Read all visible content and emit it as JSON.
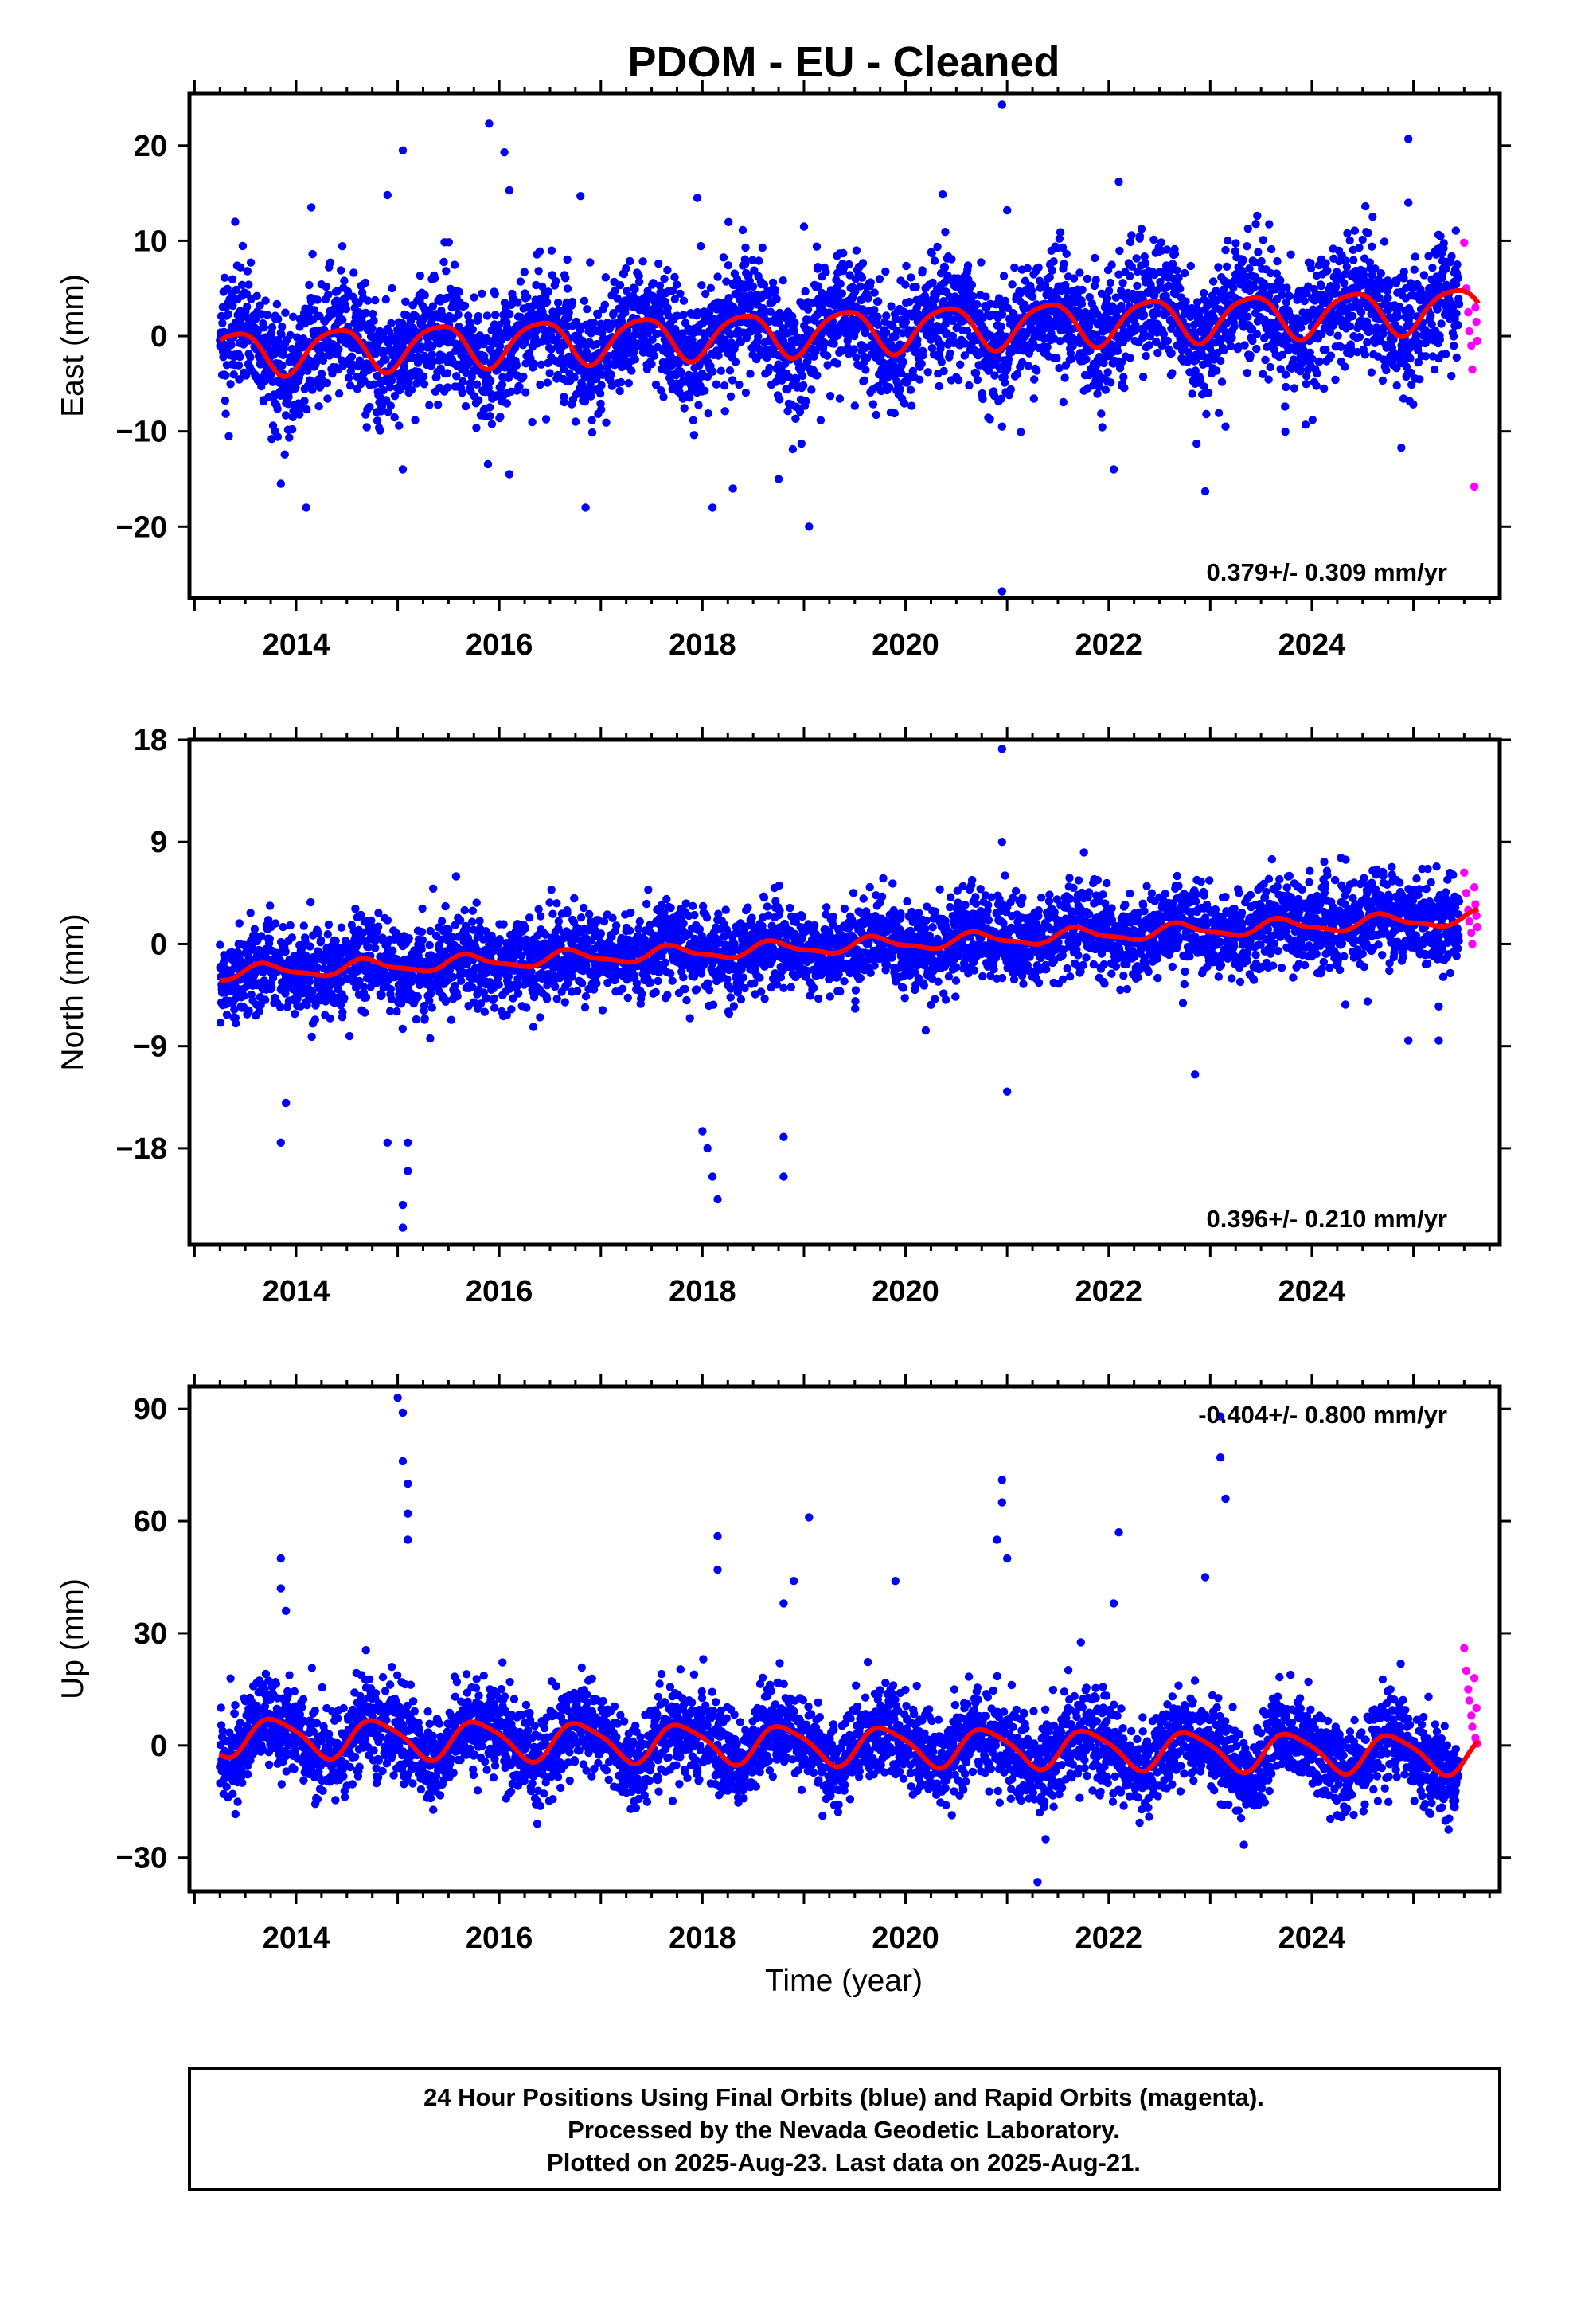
{
  "page": {
    "title": "PDOM  - EU - Cleaned",
    "footer_lines": [
      "24 Hour Positions Using Final Orbits (blue) and Rapid Orbits (magenta).",
      "Processed by the Nevada Geodetic Laboratory.",
      "Plotted on 2025-Aug-23. Last data on 2025-Aug-21."
    ],
    "xlabel": "Time (year)"
  },
  "colors": {
    "final_orbits": "#0000ff",
    "rapid_orbits": "#ff00ff",
    "model_fit": "#ff0000",
    "frame": "#000000"
  },
  "chart_data": [
    {
      "type": "scatter",
      "panel": "east",
      "ylabel": "East (mm)",
      "ylim": [
        -27.5,
        25.5
      ],
      "yticks": [
        20,
        10,
        0,
        -10,
        -20
      ],
      "xlim": [
        2012.95,
        2025.85
      ],
      "xticks": [
        2014,
        2016,
        2018,
        2020,
        2022,
        2024
      ],
      "rate_label": "0.379+/- 0.309 mm/yr",
      "rate_position": "bottom-right",
      "data_start": 2013.25,
      "final_end": 2025.45,
      "rapid_end": 2025.64,
      "model": {
        "offset": -1.8,
        "slope": 0.379,
        "t0": 2013.25,
        "annual_amp": 2.3,
        "annual_phase": 0.15,
        "semiannual_amp": 0.4
      },
      "scatter_sd": 3.2,
      "outliers": [
        {
          "x": 2013.4,
          "y": 12.0
        },
        {
          "x": 2013.85,
          "y": -15.5
        },
        {
          "x": 2014.1,
          "y": -18.0
        },
        {
          "x": 2014.15,
          "y": 13.5
        },
        {
          "x": 2014.9,
          "y": 14.8
        },
        {
          "x": 2015.05,
          "y": 19.5
        },
        {
          "x": 2015.05,
          "y": -14.0
        },
        {
          "x": 2015.9,
          "y": 22.3
        },
        {
          "x": 2016.05,
          "y": 19.3
        },
        {
          "x": 2016.1,
          "y": 15.3
        },
        {
          "x": 2016.1,
          "y": -14.5
        },
        {
          "x": 2016.8,
          "y": 14.7
        },
        {
          "x": 2016.85,
          "y": -18.0
        },
        {
          "x": 2017.95,
          "y": 14.5
        },
        {
          "x": 2018.1,
          "y": -18.0
        },
        {
          "x": 2018.3,
          "y": -16.0
        },
        {
          "x": 2018.75,
          "y": -15.0
        },
        {
          "x": 2019.0,
          "y": 11.5
        },
        {
          "x": 2019.05,
          "y": -20.0
        },
        {
          "x": 2020.95,
          "y": 24.3
        },
        {
          "x": 2020.95,
          "y": -9.5
        },
        {
          "x": 2020.95,
          "y": -26.8
        },
        {
          "x": 2021.0,
          "y": 13.2
        },
        {
          "x": 2022.05,
          "y": -14.0
        },
        {
          "x": 2022.1,
          "y": 16.2
        },
        {
          "x": 2022.95,
          "y": -16.3
        },
        {
          "x": 2023.15,
          "y": -9.5
        },
        {
          "x": 2024.95,
          "y": 20.7
        },
        {
          "x": 2024.95,
          "y": 14.0
        }
      ],
      "rapid_points": [
        {
          "x": 2025.5,
          "y": 9.8
        },
        {
          "x": 2025.52,
          "y": 5.0
        },
        {
          "x": 2025.54,
          "y": 2.5
        },
        {
          "x": 2025.55,
          "y": 0.5
        },
        {
          "x": 2025.57,
          "y": -1.0
        },
        {
          "x": 2025.58,
          "y": -3.5
        },
        {
          "x": 2025.6,
          "y": -15.8
        },
        {
          "x": 2025.61,
          "y": 3.0
        },
        {
          "x": 2025.62,
          "y": 1.5
        },
        {
          "x": 2025.63,
          "y": -0.5
        }
      ]
    },
    {
      "type": "scatter",
      "panel": "north",
      "ylabel": "North (mm)",
      "ylim": [
        -26.5,
        18.0
      ],
      "yticks": [
        18,
        9,
        0,
        -9,
        -18
      ],
      "xlim": [
        2012.95,
        2025.85
      ],
      "xticks": [
        2014,
        2016,
        2018,
        2020,
        2022,
        2024
      ],
      "rate_label": "0.396+/- 0.210 mm/yr",
      "rate_position": "bottom-right",
      "data_start": 2013.25,
      "final_end": 2025.45,
      "rapid_end": 2025.64,
      "model": {
        "offset": -2.6,
        "slope": 0.396,
        "t0": 2013.25,
        "annual_amp": 0.6,
        "annual_phase": 0.45,
        "semiannual_amp": 0.2
      },
      "scatter_sd": 1.9,
      "outliers": [
        {
          "x": 2013.85,
          "y": -17.5
        },
        {
          "x": 2013.9,
          "y": -14.0
        },
        {
          "x": 2014.9,
          "y": -17.5
        },
        {
          "x": 2015.05,
          "y": -23.0
        },
        {
          "x": 2015.05,
          "y": -25.0
        },
        {
          "x": 2015.1,
          "y": -20.0
        },
        {
          "x": 2015.1,
          "y": -17.5
        },
        {
          "x": 2018.0,
          "y": -16.5
        },
        {
          "x": 2018.05,
          "y": -18.0
        },
        {
          "x": 2018.1,
          "y": -20.5
        },
        {
          "x": 2018.15,
          "y": -22.5
        },
        {
          "x": 2018.8,
          "y": -17.0
        },
        {
          "x": 2018.8,
          "y": -20.5
        },
        {
          "x": 2020.95,
          "y": 17.2
        },
        {
          "x": 2020.95,
          "y": 9.0
        },
        {
          "x": 2021.0,
          "y": -13.0
        },
        {
          "x": 2022.85,
          "y": -11.5
        },
        {
          "x": 2024.95,
          "y": -8.5
        },
        {
          "x": 2025.25,
          "y": -8.5
        },
        {
          "x": 2025.25,
          "y": -5.5
        }
      ],
      "rapid_points": [
        {
          "x": 2025.5,
          "y": 6.3
        },
        {
          "x": 2025.52,
          "y": 4.5
        },
        {
          "x": 2025.54,
          "y": 3.0
        },
        {
          "x": 2025.55,
          "y": 2.0
        },
        {
          "x": 2025.57,
          "y": 1.0
        },
        {
          "x": 2025.58,
          "y": 0.0
        },
        {
          "x": 2025.6,
          "y": 5.0
        },
        {
          "x": 2025.61,
          "y": 3.5
        },
        {
          "x": 2025.62,
          "y": 2.5
        },
        {
          "x": 2025.63,
          "y": 1.5
        }
      ]
    },
    {
      "type": "scatter",
      "panel": "up",
      "ylabel": "Up (mm)",
      "ylim": [
        -39.0,
        96.0
      ],
      "yticks": [
        90,
        60,
        30,
        0,
        -30
      ],
      "xlim": [
        2012.95,
        2025.85
      ],
      "xticks": [
        2014,
        2016,
        2018,
        2020,
        2022,
        2024
      ],
      "rate_label": "-0.404+/- 0.800 mm/yr",
      "rate_position": "top-right",
      "data_start": 2013.25,
      "final_end": 2025.45,
      "rapid_end": 2025.64,
      "model": {
        "offset": 2.5,
        "slope": -0.404,
        "t0": 2013.25,
        "annual_amp": 5.0,
        "annual_phase": 0.55,
        "semiannual_amp": 1.0
      },
      "scatter_sd": 6.0,
      "outliers": [
        {
          "x": 2013.85,
          "y": 50.0
        },
        {
          "x": 2013.85,
          "y": 42.0
        },
        {
          "x": 2013.9,
          "y": 36.0
        },
        {
          "x": 2015.0,
          "y": 93.0
        },
        {
          "x": 2015.05,
          "y": 89.0
        },
        {
          "x": 2015.05,
          "y": 76.0
        },
        {
          "x": 2015.1,
          "y": 70.0
        },
        {
          "x": 2015.1,
          "y": 62.0
        },
        {
          "x": 2015.1,
          "y": 55.0
        },
        {
          "x": 2018.15,
          "y": 56.0
        },
        {
          "x": 2018.15,
          "y": 47.0
        },
        {
          "x": 2018.8,
          "y": 38.0
        },
        {
          "x": 2019.05,
          "y": 61.0
        },
        {
          "x": 2018.9,
          "y": 44.0
        },
        {
          "x": 2019.9,
          "y": 44.0
        },
        {
          "x": 2020.95,
          "y": 71.0
        },
        {
          "x": 2020.95,
          "y": 65.0
        },
        {
          "x": 2020.9,
          "y": 55.0
        },
        {
          "x": 2021.0,
          "y": 50.0
        },
        {
          "x": 2021.3,
          "y": -36.5
        },
        {
          "x": 2022.1,
          "y": 57.0
        },
        {
          "x": 2022.05,
          "y": 38.0
        },
        {
          "x": 2023.1,
          "y": 88.0
        },
        {
          "x": 2023.1,
          "y": 77.0
        },
        {
          "x": 2022.95,
          "y": 45.0
        },
        {
          "x": 2023.15,
          "y": 66.0
        }
      ],
      "rapid_points": [
        {
          "x": 2025.5,
          "y": 26.0
        },
        {
          "x": 2025.52,
          "y": 20.0
        },
        {
          "x": 2025.54,
          "y": 15.0
        },
        {
          "x": 2025.55,
          "y": 12.0
        },
        {
          "x": 2025.57,
          "y": 8.0
        },
        {
          "x": 2025.58,
          "y": 5.0
        },
        {
          "x": 2025.6,
          "y": 18.0
        },
        {
          "x": 2025.61,
          "y": 2.0
        },
        {
          "x": 2025.62,
          "y": 10.0
        },
        {
          "x": 2025.63,
          "y": 0.5
        }
      ]
    }
  ]
}
